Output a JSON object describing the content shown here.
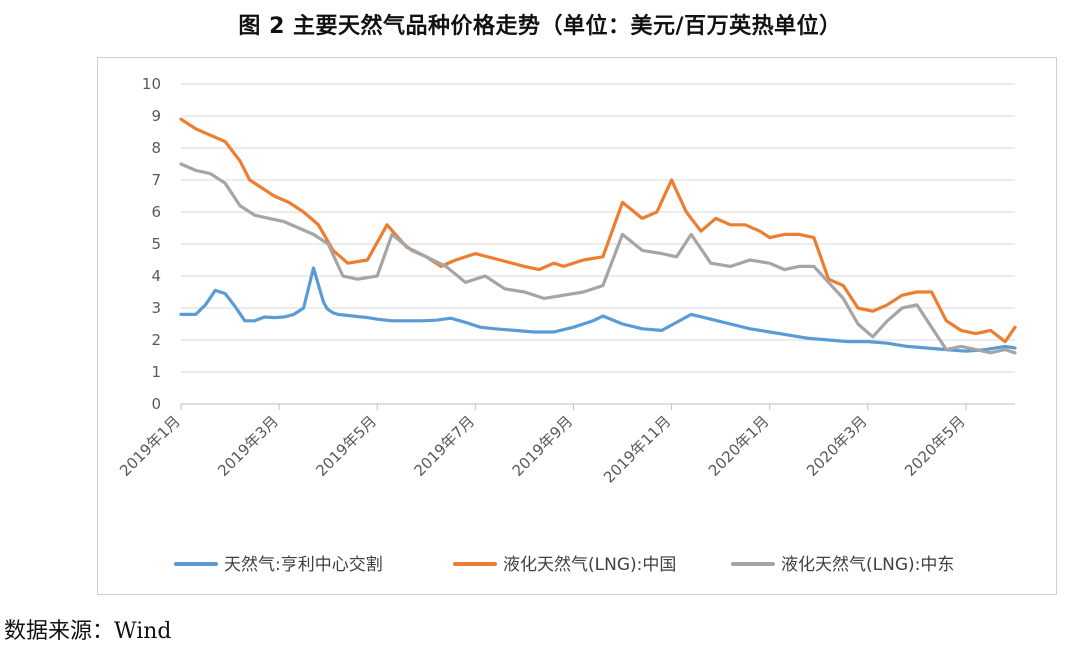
{
  "title": "图 2 主要天然气品种价格走势（单位：美元/百万英热单位）",
  "source": "数据来源：Wind",
  "chart_data": {
    "type": "line",
    "ylim": [
      0,
      10
    ],
    "yticks": [
      0,
      1,
      2,
      3,
      4,
      5,
      6,
      7,
      8,
      9,
      10
    ],
    "xlim": [
      0,
      17.0
    ],
    "xtick_labels": [
      "2019年1月",
      "2019年3月",
      "2019年5月",
      "2019年7月",
      "2019年9月",
      "2019年11月",
      "2020年1月",
      "2020年3月",
      "2020年5月"
    ],
    "xtick_positions": [
      0,
      2,
      4,
      6,
      8,
      10,
      12,
      14,
      16
    ],
    "x_unit": "months since 2019-01",
    "grid": "horizontal",
    "legend_position": "bottom",
    "series": [
      {
        "name": "天然气:亨利中心交割",
        "color": "#5B9BD5",
        "x": [
          0,
          0.3,
          0.5,
          0.7,
          0.9,
          1.1,
          1.3,
          1.5,
          1.7,
          1.9,
          2.1,
          2.3,
          2.5,
          2.7,
          2.9,
          2.97,
          3.0,
          3.05,
          3.1,
          3.2,
          3.5,
          3.8,
          4.0,
          4.3,
          4.6,
          4.9,
          5.2,
          5.5,
          5.8,
          6.1,
          6.4,
          6.8,
          7.2,
          7.6,
          8.0,
          8.4,
          8.6,
          9.0,
          9.4,
          9.8,
          10.1,
          10.4,
          10.8,
          11.2,
          11.6,
          12.0,
          12.4,
          12.8,
          13.2,
          13.6,
          14.0,
          14.4,
          14.8,
          15.2,
          15.6,
          16.0,
          16.4,
          16.8,
          17.0
        ],
        "y": [
          2.8,
          2.8,
          3.1,
          3.55,
          3.45,
          3.05,
          2.6,
          2.6,
          2.72,
          2.7,
          2.72,
          2.8,
          3.0,
          4.25,
          3.2,
          3.0,
          2.95,
          2.9,
          2.85,
          2.8,
          2.75,
          2.7,
          2.65,
          2.6,
          2.6,
          2.6,
          2.62,
          2.68,
          2.55,
          2.4,
          2.35,
          2.3,
          2.25,
          2.25,
          2.4,
          2.6,
          2.75,
          2.5,
          2.35,
          2.3,
          2.55,
          2.8,
          2.65,
          2.5,
          2.35,
          2.25,
          2.15,
          2.05,
          2.0,
          1.95,
          1.95,
          1.9,
          1.8,
          1.75,
          1.7,
          1.65,
          1.7,
          1.8,
          1.75
        ]
      },
      {
        "name": "液化天然气(LNG):中国",
        "color": "#ED7D31",
        "x": [
          0,
          0.3,
          0.6,
          0.9,
          1.2,
          1.4,
          1.6,
          1.9,
          2.2,
          2.5,
          2.8,
          3.1,
          3.4,
          3.8,
          4.2,
          4.6,
          5.0,
          5.3,
          5.6,
          6.0,
          6.5,
          7.0,
          7.3,
          7.6,
          7.8,
          8.2,
          8.6,
          9.0,
          9.4,
          9.7,
          10.0,
          10.3,
          10.6,
          10.9,
          11.2,
          11.5,
          11.8,
          12.0,
          12.3,
          12.6,
          12.9,
          13.2,
          13.5,
          13.8,
          14.1,
          14.4,
          14.7,
          15.0,
          15.3,
          15.6,
          15.9,
          16.2,
          16.5,
          16.8,
          17.0
        ],
        "y": [
          8.9,
          8.6,
          8.4,
          8.2,
          7.6,
          7.0,
          6.8,
          6.5,
          6.3,
          6.0,
          5.6,
          4.8,
          4.4,
          4.5,
          5.6,
          4.9,
          4.6,
          4.3,
          4.5,
          4.7,
          4.5,
          4.3,
          4.2,
          4.4,
          4.3,
          4.5,
          4.6,
          6.3,
          5.8,
          6.0,
          7.0,
          6.0,
          5.4,
          5.8,
          5.6,
          5.6,
          5.4,
          5.2,
          5.3,
          5.3,
          5.2,
          3.9,
          3.7,
          3.0,
          2.9,
          3.1,
          3.4,
          3.5,
          3.5,
          2.6,
          2.3,
          2.2,
          2.3,
          1.95,
          2.4
        ]
      },
      {
        "name": "液化天然气(LNG):中东",
        "color": "#A5A5A5",
        "x": [
          0,
          0.3,
          0.6,
          0.9,
          1.2,
          1.5,
          1.8,
          2.1,
          2.4,
          2.7,
          3.0,
          3.3,
          3.6,
          4.0,
          4.3,
          4.7,
          5.0,
          5.4,
          5.8,
          6.2,
          6.6,
          7.0,
          7.4,
          7.8,
          8.2,
          8.6,
          9.0,
          9.4,
          9.8,
          10.1,
          10.4,
          10.8,
          11.2,
          11.6,
          12.0,
          12.3,
          12.6,
          12.9,
          13.2,
          13.5,
          13.8,
          14.1,
          14.4,
          14.7,
          15.0,
          15.3,
          15.6,
          15.9,
          16.2,
          16.5,
          16.8,
          17.0
        ],
        "y": [
          7.5,
          7.3,
          7.2,
          6.9,
          6.2,
          5.9,
          5.8,
          5.7,
          5.5,
          5.3,
          5.0,
          4.0,
          3.9,
          4.0,
          5.3,
          4.8,
          4.6,
          4.3,
          3.8,
          4.0,
          3.6,
          3.5,
          3.3,
          3.4,
          3.5,
          3.7,
          5.3,
          4.8,
          4.7,
          4.6,
          5.3,
          4.4,
          4.3,
          4.5,
          4.4,
          4.2,
          4.3,
          4.3,
          3.8,
          3.3,
          2.5,
          2.1,
          2.6,
          3.0,
          3.1,
          2.4,
          1.7,
          1.8,
          1.7,
          1.6,
          1.7,
          1.6
        ]
      }
    ]
  }
}
